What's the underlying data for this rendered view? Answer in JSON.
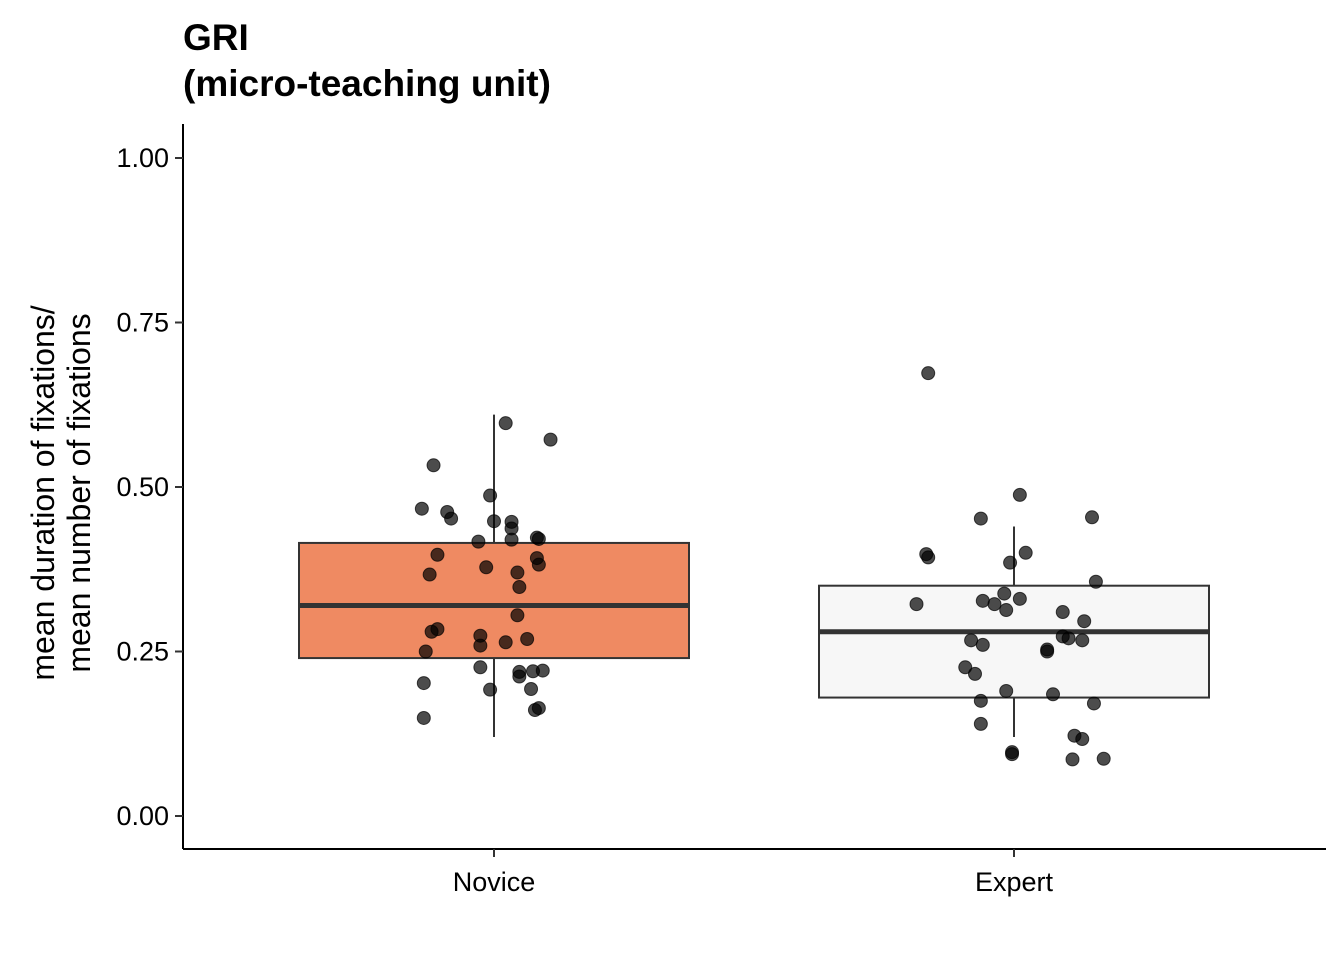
{
  "chart_data": {
    "type": "box",
    "title_lines": [
      "GRI",
      "(micro-teaching unit)"
    ],
    "xlabel": "",
    "ylabel_lines": [
      "mean duration of fixations/",
      "mean number of fixations"
    ],
    "ylim": [
      -0.05,
      1.05
    ],
    "yticks": [
      {
        "value": 0.0,
        "label": "0.00"
      },
      {
        "value": 0.25,
        "label": "0.25"
      },
      {
        "value": 0.5,
        "label": "0.50"
      },
      {
        "value": 0.75,
        "label": "0.75"
      },
      {
        "value": 1.0,
        "label": "1.00"
      }
    ],
    "categories": [
      "Novice",
      "Expert"
    ],
    "grid": false,
    "legend": "none",
    "boxes": [
      {
        "category": "Novice",
        "fill": "#EF8A62",
        "q1": 0.24,
        "median": 0.32,
        "q3": 0.415,
        "whisker_low": 0.12,
        "whisker_high": 0.61,
        "points": [
          {
            "x": 0.06,
            "y": 0.597
          },
          {
            "x": 0.29,
            "y": 0.572
          },
          {
            "x": -0.31,
            "y": 0.533
          },
          {
            "x": -0.02,
            "y": 0.487
          },
          {
            "x": -0.37,
            "y": 0.467
          },
          {
            "x": -0.24,
            "y": 0.462
          },
          {
            "x": -0.22,
            "y": 0.452
          },
          {
            "x": 0.0,
            "y": 0.448
          },
          {
            "x": 0.09,
            "y": 0.447
          },
          {
            "x": 0.09,
            "y": 0.437
          },
          {
            "x": -0.08,
            "y": 0.417
          },
          {
            "x": 0.09,
            "y": 0.42
          },
          {
            "x": 0.22,
            "y": 0.423
          },
          {
            "x": 0.23,
            "y": 0.421
          },
          {
            "x": -0.29,
            "y": 0.397
          },
          {
            "x": 0.22,
            "y": 0.392
          },
          {
            "x": -0.04,
            "y": 0.378
          },
          {
            "x": 0.23,
            "y": 0.382
          },
          {
            "x": -0.33,
            "y": 0.367
          },
          {
            "x": 0.12,
            "y": 0.37
          },
          {
            "x": 0.13,
            "y": 0.348
          },
          {
            "x": 0.12,
            "y": 0.305
          },
          {
            "x": -0.29,
            "y": 0.284
          },
          {
            "x": -0.32,
            "y": 0.28
          },
          {
            "x": -0.07,
            "y": 0.274
          },
          {
            "x": 0.17,
            "y": 0.269
          },
          {
            "x": 0.06,
            "y": 0.264
          },
          {
            "x": -0.07,
            "y": 0.259
          },
          {
            "x": -0.35,
            "y": 0.25
          },
          {
            "x": -0.07,
            "y": 0.226
          },
          {
            "x": 0.13,
            "y": 0.219
          },
          {
            "x": 0.2,
            "y": 0.22
          },
          {
            "x": 0.25,
            "y": 0.221
          },
          {
            "x": 0.13,
            "y": 0.212
          },
          {
            "x": -0.36,
            "y": 0.202
          },
          {
            "x": -0.02,
            "y": 0.192
          },
          {
            "x": 0.19,
            "y": 0.193
          },
          {
            "x": 0.21,
            "y": 0.161
          },
          {
            "x": 0.23,
            "y": 0.164
          },
          {
            "x": -0.36,
            "y": 0.149
          }
        ]
      },
      {
        "category": "Expert",
        "fill": "#F7F7F7",
        "q1": 0.18,
        "median": 0.28,
        "q3": 0.35,
        "whisker_low": 0.12,
        "whisker_high": 0.44,
        "points": [
          {
            "x": -0.44,
            "y": 0.673
          },
          {
            "x": 0.03,
            "y": 0.488
          },
          {
            "x": -0.17,
            "y": 0.452
          },
          {
            "x": 0.4,
            "y": 0.454
          },
          {
            "x": 0.06,
            "y": 0.4
          },
          {
            "x": -0.45,
            "y": 0.398
          },
          {
            "x": -0.44,
            "y": 0.393
          },
          {
            "x": -0.02,
            "y": 0.385
          },
          {
            "x": 0.42,
            "y": 0.356
          },
          {
            "x": -0.05,
            "y": 0.338
          },
          {
            "x": 0.03,
            "y": 0.33
          },
          {
            "x": -0.16,
            "y": 0.327
          },
          {
            "x": -0.1,
            "y": 0.322
          },
          {
            "x": -0.5,
            "y": 0.322
          },
          {
            "x": -0.04,
            "y": 0.313
          },
          {
            "x": 0.25,
            "y": 0.31
          },
          {
            "x": 0.36,
            "y": 0.296
          },
          {
            "x": 0.25,
            "y": 0.273
          },
          {
            "x": 0.28,
            "y": 0.27
          },
          {
            "x": -0.22,
            "y": 0.267
          },
          {
            "x": 0.35,
            "y": 0.267
          },
          {
            "x": -0.16,
            "y": 0.26
          },
          {
            "x": 0.17,
            "y": 0.253
          },
          {
            "x": 0.17,
            "y": 0.25
          },
          {
            "x": -0.25,
            "y": 0.226
          },
          {
            "x": -0.2,
            "y": 0.216
          },
          {
            "x": -0.04,
            "y": 0.19
          },
          {
            "x": 0.2,
            "y": 0.185
          },
          {
            "x": -0.17,
            "y": 0.175
          },
          {
            "x": 0.41,
            "y": 0.171
          },
          {
            "x": -0.17,
            "y": 0.14
          },
          {
            "x": 0.31,
            "y": 0.122
          },
          {
            "x": 0.35,
            "y": 0.117
          },
          {
            "x": -0.01,
            "y": 0.097
          },
          {
            "x": -0.01,
            "y": 0.094
          },
          {
            "x": 0.3,
            "y": 0.086
          },
          {
            "x": 0.46,
            "y": 0.087
          }
        ]
      }
    ]
  }
}
